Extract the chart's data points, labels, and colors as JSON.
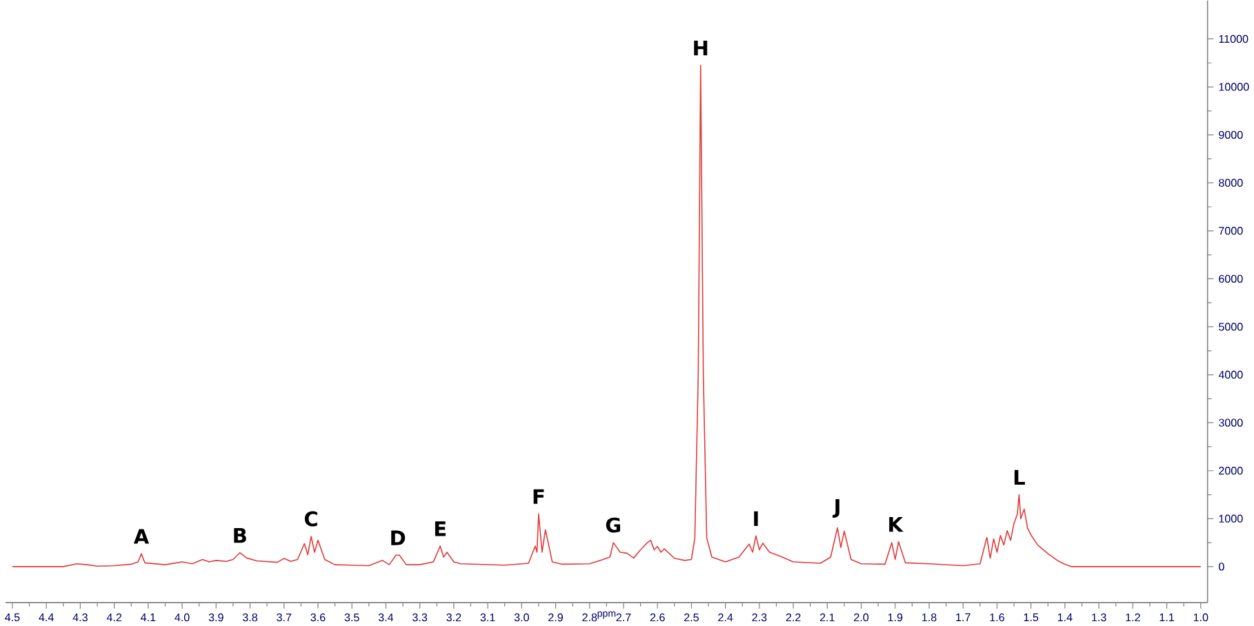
{
  "chart_data": {
    "type": "line",
    "xlabel": "ppm",
    "color": "#e03c3c",
    "x": [
      4.5,
      4.35,
      4.31,
      4.28,
      4.25,
      4.2,
      4.15,
      4.13,
      4.12,
      4.11,
      4.05,
      4.0,
      3.97,
      3.94,
      3.92,
      3.9,
      3.87,
      3.85,
      3.83,
      3.81,
      3.78,
      3.72,
      3.7,
      3.68,
      3.66,
      3.64,
      3.63,
      3.62,
      3.61,
      3.6,
      3.58,
      3.55,
      3.45,
      3.41,
      3.39,
      3.37,
      3.36,
      3.34,
      3.3,
      3.26,
      3.24,
      3.23,
      3.22,
      3.2,
      3.18,
      3.05,
      2.98,
      2.96,
      2.955,
      2.95,
      2.94,
      2.93,
      2.91,
      2.88,
      2.8,
      2.76,
      2.74,
      2.73,
      2.71,
      2.69,
      2.67,
      2.65,
      2.63,
      2.62,
      2.61,
      2.6,
      2.59,
      2.58,
      2.55,
      2.52,
      2.5,
      2.49,
      2.48,
      2.473,
      2.465,
      2.455,
      2.44,
      2.4,
      2.36,
      2.33,
      2.32,
      2.31,
      2.3,
      2.29,
      2.27,
      2.24,
      2.2,
      2.12,
      2.09,
      2.07,
      2.06,
      2.05,
      2.03,
      2.0,
      1.93,
      1.91,
      1.9,
      1.89,
      1.87,
      1.8,
      1.7,
      1.65,
      1.63,
      1.62,
      1.61,
      1.6,
      1.59,
      1.58,
      1.57,
      1.56,
      1.55,
      1.54,
      1.535,
      1.53,
      1.52,
      1.51,
      1.5,
      1.48,
      1.45,
      1.42,
      1.4,
      1.38,
      1.0
    ],
    "values": [
      0,
      0,
      60,
      40,
      10,
      20,
      50,
      100,
      270,
      80,
      40,
      100,
      60,
      150,
      100,
      130,
      110,
      150,
      290,
      180,
      120,
      90,
      170,
      110,
      150,
      480,
      250,
      630,
      300,
      550,
      150,
      40,
      20,
      130,
      40,
      240,
      240,
      40,
      40,
      100,
      430,
      200,
      300,
      100,
      60,
      30,
      70,
      430,
      300,
      1100,
      300,
      770,
      100,
      50,
      60,
      150,
      200,
      500,
      300,
      280,
      180,
      350,
      500,
      550,
      350,
      420,
      300,
      370,
      175,
      130,
      150,
      600,
      4000,
      10450,
      4000,
      600,
      200,
      100,
      200,
      470,
      300,
      640,
      350,
      490,
      300,
      220,
      100,
      70,
      200,
      810,
      400,
      740,
      150,
      60,
      50,
      500,
      150,
      520,
      80,
      60,
      20,
      60,
      610,
      175,
      580,
      300,
      650,
      450,
      750,
      550,
      900,
      1100,
      1500,
      1000,
      1200,
      800,
      660,
      450,
      270,
      120,
      50,
      0,
      0
    ],
    "xlim": [
      4.52,
      0.98
    ],
    "ylim": [
      -750,
      11800
    ],
    "xticks": [
      4.5,
      4.4,
      4.3,
      4.2,
      4.1,
      {
        "value": 4,
        "label": "4.0"
      },
      3.9,
      3.8,
      3.7,
      3.6,
      3.5,
      3.4,
      3.3,
      3.2,
      3.1,
      {
        "value": 3,
        "label": "3.0"
      },
      2.9,
      2.8,
      2.7,
      2.6,
      2.5,
      2.4,
      2.3,
      2.2,
      2.1,
      {
        "value": 2,
        "label": "2.0"
      },
      1.9,
      1.8,
      1.7,
      1.6,
      1.5,
      1.4,
      1.3,
      1.2,
      1.1,
      {
        "value": 1,
        "label": "1.0"
      }
    ],
    "yticks": [
      0,
      1000,
      2000,
      3000,
      4000,
      5000,
      6000,
      7000,
      8000,
      9000,
      10000,
      11000
    ],
    "annotations": [
      {
        "text": "A",
        "x": 4.12,
        "y": 270
      },
      {
        "text": "B",
        "x": 3.83,
        "y": 290
      },
      {
        "text": "C",
        "x": 3.62,
        "y": 630
      },
      {
        "text": "D",
        "x": 3.365,
        "y": 240
      },
      {
        "text": "E",
        "x": 3.24,
        "y": 430
      },
      {
        "text": "F",
        "x": 2.95,
        "y": 1100
      },
      {
        "text": "G",
        "x": 2.73,
        "y": 500
      },
      {
        "text": "H",
        "x": 2.473,
        "y": 10450
      },
      {
        "text": "I",
        "x": 2.31,
        "y": 640
      },
      {
        "text": "J",
        "x": 2.07,
        "y": 810
      },
      {
        "text": "K",
        "x": 1.9,
        "y": 520
      },
      {
        "text": "L",
        "x": 1.535,
        "y": 1500
      }
    ]
  }
}
